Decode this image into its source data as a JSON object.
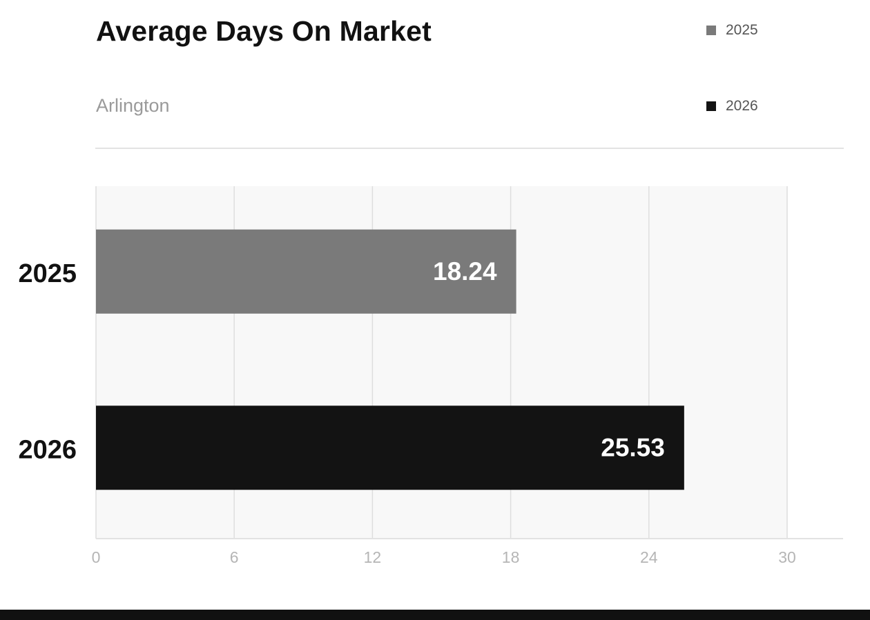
{
  "chart_data": {
    "type": "bar",
    "orientation": "horizontal",
    "title": "Average Days On Market",
    "subtitle": "Arlington",
    "categories": [
      "2025",
      "2026"
    ],
    "values": [
      18.24,
      25.53
    ],
    "value_labels": [
      "18.24",
      "25.53"
    ],
    "bar_colors": [
      "#7a7a7a",
      "#131313"
    ],
    "legend": [
      {
        "label": "2025",
        "color": "#7a7a7a"
      },
      {
        "label": "2026",
        "color": "#131313"
      }
    ],
    "legend_position": "top-right",
    "xlim": [
      0,
      30
    ],
    "xticks": [
      "0",
      "6",
      "12",
      "18",
      "24",
      "30"
    ],
    "grid": true,
    "xlabel": "",
    "ylabel": ""
  }
}
